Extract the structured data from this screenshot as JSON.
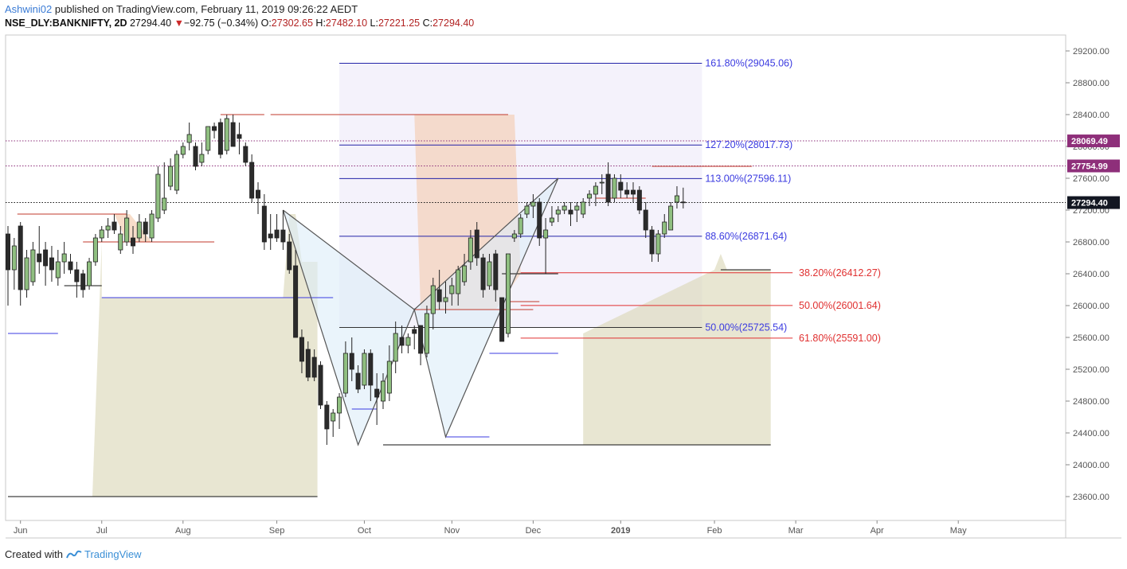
{
  "header": {
    "author": "Ashwini02",
    "published": " published on TradingView.com, February 11, 2019 09:26:22 AEDT",
    "symbol": "NSE_DLY:BANKNIFTY, 2D",
    "last": "27294.40",
    "change_arrow": "▼",
    "change": "−92.75 (−0.34%)",
    "o_label": "O:",
    "o": "27302.65",
    "h_label": "H:",
    "h": "27482.10",
    "l_label": "L:",
    "l": "27221.25",
    "c_label": "C:",
    "c": "27294.40"
  },
  "footer": {
    "created_with": "Created with",
    "brand": "TradingView"
  },
  "colors": {
    "up": "#8fbf80",
    "down": "#2b2b2b",
    "fib_blue": "#3b3be0",
    "fib_red": "#e03030",
    "marker_red": "#c0392b",
    "marker_dark": "#111111",
    "marker_purple": "#8e2f7a"
  },
  "chart_data": {
    "type": "candlestick",
    "title": "NSE_DLY:BANKNIFTY, 2D",
    "ylim": [
      23300,
      29400
    ],
    "y_ticks": [
      23600,
      24000,
      24400,
      24800,
      25200,
      25600,
      26000,
      26400,
      26800,
      27200,
      27600,
      28000,
      28400,
      28800,
      29200
    ],
    "y_tick_labels": [
      "23600.00",
      "24000.00",
      "24400.00",
      "24800.00",
      "25200.00",
      "25600.00",
      "26000.00",
      "26400.00",
      "26800.00",
      "27200.00",
      "27600.00",
      "28000.00",
      "28400.00",
      "28800.00",
      "29200.00"
    ],
    "x_ticks": [
      {
        "label": "Jun",
        "bar": 2
      },
      {
        "label": "Jul",
        "bar": 15
      },
      {
        "label": "Aug",
        "bar": 28
      },
      {
        "label": "Sep",
        "bar": 43
      },
      {
        "label": "Oct",
        "bar": 57
      },
      {
        "label": "Nov",
        "bar": 71
      },
      {
        "label": "Dec",
        "bar": 84
      },
      {
        "label": "2019",
        "bar": 98,
        "bold": true
      },
      {
        "label": "Feb",
        "bar": 113
      },
      {
        "label": "Mar",
        "bar": 126
      },
      {
        "label": "Apr",
        "bar": 139
      },
      {
        "label": "May",
        "bar": 152
      }
    ],
    "ohlc": [
      [
        26900,
        27000,
        26000,
        26450
      ],
      [
        26450,
        26850,
        26200,
        26750
      ],
      [
        27000,
        27050,
        26000,
        26200
      ],
      [
        26200,
        26700,
        26100,
        26600
      ],
      [
        26300,
        26800,
        26250,
        26700
      ],
      [
        26650,
        27000,
        26400,
        26550
      ],
      [
        26700,
        26800,
        26250,
        26500
      ],
      [
        26600,
        26750,
        26300,
        26450
      ],
      [
        26350,
        26700,
        26250,
        26550
      ],
      [
        26550,
        26800,
        26400,
        26650
      ],
      [
        26550,
        26650,
        26400,
        26450
      ],
      [
        26450,
        26550,
        26100,
        26300
      ],
      [
        26400,
        26450,
        26100,
        26200
      ],
      [
        26250,
        26600,
        26200,
        26550
      ],
      [
        26550,
        26900,
        26500,
        26850
      ],
      [
        26850,
        27000,
        26800,
        26950
      ],
      [
        26950,
        27100,
        26850,
        27000
      ],
      [
        27050,
        27150,
        26900,
        26950
      ],
      [
        26700,
        27000,
        26650,
        26900
      ],
      [
        26800,
        27200,
        26750,
        27100
      ],
      [
        26850,
        27000,
        26650,
        26750
      ],
      [
        26850,
        27150,
        26800,
        27050
      ],
      [
        27050,
        27100,
        26800,
        26900
      ],
      [
        26850,
        27200,
        26800,
        27150
      ],
      [
        27100,
        27750,
        27050,
        27650
      ],
      [
        27200,
        27800,
        27150,
        27350
      ],
      [
        27500,
        27850,
        27450,
        27750
      ],
      [
        27450,
        27950,
        27400,
        27900
      ],
      [
        27900,
        28050,
        27850,
        28000
      ],
      [
        28050,
        28300,
        27950,
        28150
      ],
      [
        28000,
        28050,
        27700,
        27750
      ],
      [
        27800,
        28050,
        27750,
        27900
      ],
      [
        27950,
        28200,
        27900,
        28250
      ],
      [
        28250,
        28300,
        28100,
        28200
      ],
      [
        28300,
        28350,
        27850,
        27900
      ],
      [
        27950,
        28400,
        27900,
        28350
      ],
      [
        28300,
        28400,
        28000,
        28000
      ],
      [
        28150,
        28300,
        27900,
        28100
      ],
      [
        28000,
        28050,
        27750,
        27800
      ],
      [
        27800,
        27900,
        27300,
        27350
      ],
      [
        27450,
        27550,
        27150,
        27350
      ],
      [
        27250,
        27400,
        26700,
        26800
      ],
      [
        26900,
        27150,
        26700,
        26850
      ],
      [
        26950,
        27150,
        26800,
        26850
      ],
      [
        26950,
        27200,
        26700,
        26800
      ],
      [
        26800,
        26900,
        26400,
        26450
      ],
      [
        26500,
        26700,
        25600,
        25600
      ],
      [
        25600,
        25700,
        25150,
        25300
      ],
      [
        25450,
        25550,
        25050,
        25100
      ],
      [
        25350,
        25450,
        25050,
        25100
      ],
      [
        25250,
        25300,
        24700,
        24750
      ],
      [
        24750,
        24800,
        24250,
        24450
      ],
      [
        24550,
        24700,
        24350,
        24650
      ],
      [
        24650,
        24900,
        24450,
        24850
      ],
      [
        24900,
        25550,
        24850,
        25400
      ],
      [
        25400,
        25600,
        25050,
        25200
      ],
      [
        25150,
        25250,
        24900,
        24950
      ],
      [
        25000,
        25450,
        24950,
        25400
      ],
      [
        25400,
        25450,
        24800,
        25000
      ],
      [
        24950,
        25150,
        24500,
        24850
      ],
      [
        24800,
        25150,
        24700,
        25050
      ],
      [
        24900,
        25500,
        24800,
        25300
      ],
      [
        25300,
        25800,
        25150,
        25650
      ],
      [
        25600,
        25750,
        25400,
        25500
      ],
      [
        25500,
        25650,
        25400,
        25600
      ],
      [
        25700,
        25750,
        25450,
        25650
      ],
      [
        25750,
        25750,
        25250,
        25400
      ],
      [
        25400,
        26000,
        25350,
        25900
      ],
      [
        25900,
        26350,
        25700,
        26250
      ],
      [
        26200,
        26450,
        25950,
        26050
      ],
      [
        26050,
        26300,
        25900,
        26100
      ],
      [
        26150,
        26350,
        26000,
        26250
      ],
      [
        26150,
        26500,
        26000,
        26450
      ],
      [
        26300,
        26650,
        26250,
        26500
      ],
      [
        26550,
        26950,
        26450,
        26850
      ],
      [
        26950,
        27050,
        26500,
        26600
      ],
      [
        26600,
        26650,
        26100,
        26200
      ],
      [
        26250,
        26650,
        26200,
        26550
      ],
      [
        26650,
        26700,
        26050,
        26200
      ],
      [
        26100,
        26100,
        25550,
        25550
      ],
      [
        25650,
        26650,
        25600,
        26650
      ],
      [
        26850,
        26950,
        26800,
        26900
      ],
      [
        26900,
        27150,
        26850,
        27100
      ],
      [
        27150,
        27300,
        27100,
        27250
      ],
      [
        27250,
        27400,
        27100,
        27300
      ],
      [
        27300,
        27350,
        26750,
        26850
      ],
      [
        26850,
        27100,
        26400,
        26950
      ],
      [
        27050,
        27250,
        27000,
        27100
      ],
      [
        27150,
        27250,
        27050,
        27200
      ],
      [
        27200,
        27300,
        27150,
        27250
      ],
      [
        27200,
        27300,
        27000,
        27150
      ],
      [
        27200,
        27300,
        27050,
        27250
      ],
      [
        27150,
        27350,
        27100,
        27300
      ],
      [
        27350,
        27450,
        27250,
        27400
      ],
      [
        27400,
        27550,
        27250,
        27500
      ],
      [
        27550,
        27650,
        27400,
        27550
      ],
      [
        27650,
        27800,
        27250,
        27300
      ],
      [
        27350,
        27650,
        27300,
        27600
      ],
      [
        27550,
        27650,
        27350,
        27450
      ],
      [
        27450,
        27550,
        27350,
        27400
      ],
      [
        27450,
        27550,
        27300,
        27400
      ],
      [
        27450,
        27500,
        27150,
        27200
      ],
      [
        27200,
        27300,
        26850,
        26950
      ],
      [
        26950,
        27000,
        26550,
        26650
      ],
      [
        26650,
        26950,
        26550,
        26900
      ],
      [
        26900,
        27150,
        26850,
        27050
      ],
      [
        26950,
        27300,
        26950,
        27250
      ],
      [
        27300,
        27500,
        27220,
        27380
      ],
      [
        27302,
        27482,
        27221,
        27294
      ]
    ],
    "fib_extension_levels": [
      {
        "label": "161.80%(29045.06)",
        "price": 29045.06
      },
      {
        "label": "127.20%(28017.73)",
        "price": 28017.73
      },
      {
        "label": "113.00%(27596.11)",
        "price": 27596.11
      },
      {
        "label": "88.60%(26871.64)",
        "price": 26871.64
      },
      {
        "label": "50.00%(25725.54)",
        "price": 25725.54
      }
    ],
    "fib_retracement_levels": [
      {
        "label": "38.20%(26412.27)",
        "price": 26412.27
      },
      {
        "label": "50.00%(26001.64)",
        "price": 26001.64
      },
      {
        "label": "61.80%(25591.00)",
        "price": 25591.0
      }
    ],
    "horizontal_lines": [
      {
        "price": 28069.49,
        "label": "28069.49"
      },
      {
        "price": 27754.99,
        "label": "27754.99"
      },
      {
        "price": 27294.4,
        "label": "27294.40"
      }
    ],
    "harmonic_pattern": {
      "points": [
        {
          "bar": 44,
          "price": 27200
        },
        {
          "bar": 56,
          "price": 24250
        },
        {
          "bar": 65,
          "price": 25950
        },
        {
          "bar": 70,
          "price": 24350
        },
        {
          "bar": 88,
          "price": 27600
        }
      ]
    }
  }
}
